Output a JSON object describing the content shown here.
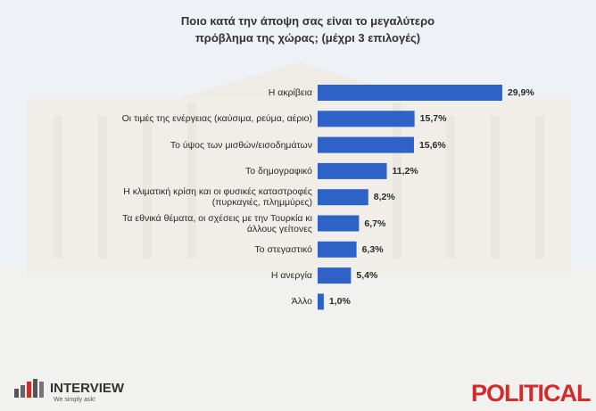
{
  "chart_data": {
    "type": "bar",
    "orientation": "horizontal",
    "title": "Ποιο κατά την άποψη σας είναι το μεγαλύτερο\nπρόβλημα της χώρας; (μέχρι 3 επιλογές)",
    "categories": [
      "Η ακρίβεια",
      "Οι τιμές της ενέργειας (καύσιμα, ρεύμα, αέριο)",
      "Το ύψος των μισθών/εισοδημάτων",
      "Το δημογραφικό",
      "Η κλιματική κρίση και οι φυσικές καταστροφές\n(πυρκαγιές, πλημμύρες)",
      "Τα εθνικά θέματα, οι σχέσεις με την Τουρκία κι\nάλλους γείτονες",
      "Το στεγαστικό",
      "Η ανεργία",
      "Άλλο"
    ],
    "values": [
      29.9,
      15.7,
      15.6,
      11.2,
      8.2,
      6.7,
      6.3,
      5.4,
      1.0
    ],
    "value_labels": [
      "29,9%",
      "15,7%",
      "15,6%",
      "11,2%",
      "8,2%",
      "6,7%",
      "6,3%",
      "5,4%",
      "1,0%"
    ],
    "color": "#2f62c6"
  },
  "branding": {
    "pollster": "INTERVIEW",
    "tagline": "We simply ask!",
    "outlet": "POLITICAL"
  }
}
